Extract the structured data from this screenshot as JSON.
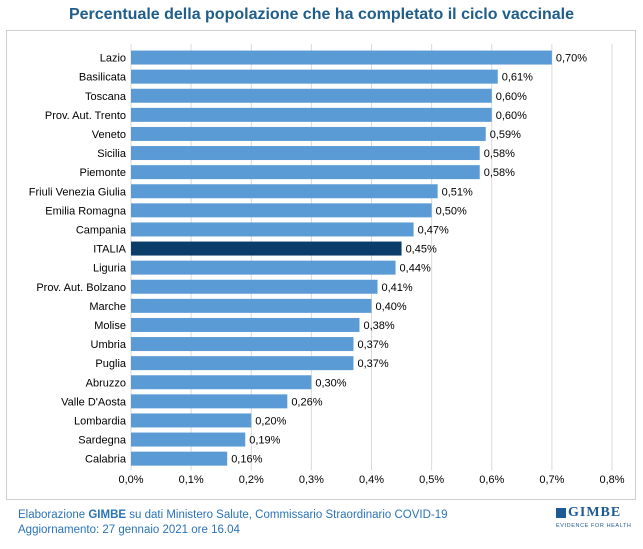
{
  "chart_data": {
    "type": "bar",
    "orientation": "horizontal",
    "title": "Percentuale della popolazione che ha completato il ciclo vaccinale",
    "categories": [
      "Lazio",
      "Basilicata",
      "Toscana",
      "Prov. Aut. Trento",
      "Veneto",
      "Sicilia",
      "Piemonte",
      "Friuli Venezia Giulia",
      "Emilia Romagna",
      "Campania",
      "ITALIA",
      "Liguria",
      "Prov. Aut. Bolzano",
      "Marche",
      "Molise",
      "Umbria",
      "Puglia",
      "Abruzzo",
      "Valle D'Aosta",
      "Lombardia",
      "Sardegna",
      "Calabria"
    ],
    "values": [
      0.7,
      0.61,
      0.6,
      0.6,
      0.59,
      0.58,
      0.58,
      0.51,
      0.5,
      0.47,
      0.45,
      0.44,
      0.41,
      0.4,
      0.38,
      0.37,
      0.37,
      0.3,
      0.26,
      0.2,
      0.19,
      0.16
    ],
    "value_labels": [
      "0,70%",
      "0,61%",
      "0,60%",
      "0,60%",
      "0,59%",
      "0,58%",
      "0,58%",
      "0,51%",
      "0,50%",
      "0,47%",
      "0,45%",
      "0,44%",
      "0,41%",
      "0,40%",
      "0,38%",
      "0,37%",
      "0,37%",
      "0,30%",
      "0,26%",
      "0,20%",
      "0,19%",
      "0,16%"
    ],
    "highlight": "ITALIA",
    "xlim": [
      0,
      0.8
    ],
    "xticks": [
      0,
      0.1,
      0.2,
      0.3,
      0.4,
      0.5,
      0.6,
      0.7,
      0.8
    ],
    "xtick_labels": [
      "0,0%",
      "0,1%",
      "0,2%",
      "0,3%",
      "0,4%",
      "0,5%",
      "0,6%",
      "0,7%",
      "0,8%"
    ],
    "grid": true,
    "colors": {
      "bar": "#5b9bd5",
      "highlight": "#0b3d6b",
      "grid": "#d9d9d9"
    }
  },
  "footer": {
    "line1_prefix": "Elaborazione",
    "line1_brand": "GIMBE",
    "line1_rest": "su dati Ministero Salute, Commissario Straordinario COVID-19",
    "line2": "Aggiornamento: 27 gennaio 2021 ore 16.04"
  },
  "logo": {
    "name": "GIMBE",
    "tagline": "EVIDENCE FOR HEALTH"
  }
}
